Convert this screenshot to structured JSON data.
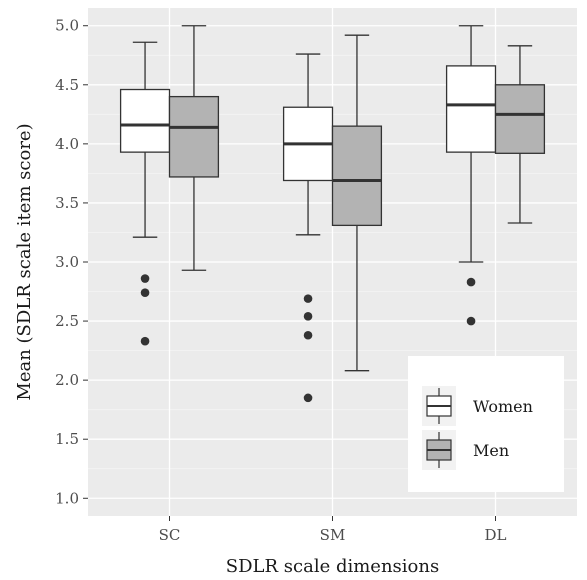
{
  "chart_data": {
    "type": "boxplot",
    "xlabel": "SDLR scale dimensions",
    "ylabel": "Mean (SDLR scale item score)",
    "categories": [
      "SC",
      "SM",
      "DL"
    ],
    "ylim": [
      0.85,
      5.15
    ],
    "yticks": [
      1.0,
      1.5,
      2.0,
      2.5,
      3.0,
      3.5,
      4.0,
      4.5,
      5.0
    ],
    "ytick_labels": [
      "1.0",
      "1.5",
      "2.0",
      "2.5",
      "3.0",
      "3.5",
      "4.0",
      "4.5",
      "5.0"
    ],
    "grid": true,
    "legend_position": "bottom-right inside",
    "series": [
      {
        "name": "Women",
        "color": "#ffffff",
        "boxes": [
          {
            "category": "SC",
            "lower_whisker": 3.21,
            "q1": 3.93,
            "median": 4.16,
            "q3": 4.46,
            "upper_whisker": 4.86,
            "outliers": [
              2.86,
              2.74,
              2.33
            ]
          },
          {
            "category": "SM",
            "lower_whisker": 3.23,
            "q1": 3.69,
            "median": 4.0,
            "q3": 4.31,
            "upper_whisker": 4.76,
            "outliers": [
              2.69,
              2.54,
              2.38,
              1.85
            ]
          },
          {
            "category": "DL",
            "lower_whisker": 3.0,
            "q1": 3.93,
            "median": 4.33,
            "q3": 4.66,
            "upper_whisker": 5.0,
            "outliers": [
              2.83,
              2.5
            ]
          }
        ]
      },
      {
        "name": "Men",
        "color": "#b3b3b3",
        "boxes": [
          {
            "category": "SC",
            "lower_whisker": 2.93,
            "q1": 3.72,
            "median": 4.14,
            "q3": 4.4,
            "upper_whisker": 5.0,
            "outliers": []
          },
          {
            "category": "SM",
            "lower_whisker": 2.08,
            "q1": 3.31,
            "median": 3.69,
            "q3": 4.15,
            "upper_whisker": 4.92,
            "outliers": []
          },
          {
            "category": "DL",
            "lower_whisker": 3.33,
            "q1": 3.92,
            "median": 4.25,
            "q3": 4.5,
            "upper_whisker": 4.83,
            "outliers": []
          }
        ]
      }
    ]
  }
}
